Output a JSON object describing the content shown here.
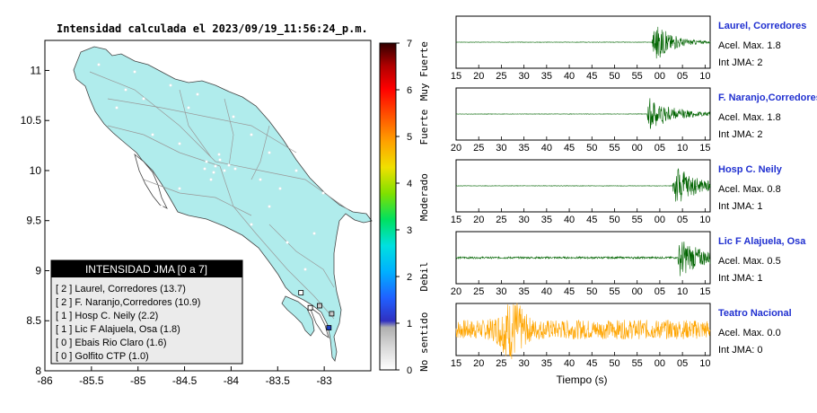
{
  "title": "Intensidad calculada el 2023/09/19_11:56:24_p.m.",
  "chart_data": [
    {
      "type": "map",
      "lon_ticks": [
        -86,
        -85.5,
        -85,
        -84.5,
        -84,
        -83.5,
        -83
      ],
      "lat_ticks": [
        8,
        8.5,
        9,
        9.5,
        10,
        10.5,
        11
      ],
      "xlim": [
        -86,
        -82.5
      ],
      "ylim": [
        8,
        11.3
      ],
      "stations": [
        {
          "lon": -82.95,
          "lat": 8.43,
          "intensity": 2
        },
        {
          "lon": -82.92,
          "lat": 8.57,
          "intensity": 1
        },
        {
          "lon": -83.05,
          "lat": 8.65,
          "intensity": 1
        },
        {
          "lon": -83.25,
          "lat": 8.78,
          "intensity": 0
        },
        {
          "lon": -83.15,
          "lat": 8.63,
          "intensity": 0
        }
      ]
    },
    {
      "type": "colorbar",
      "ticks": [
        "0",
        "1",
        "2",
        "3",
        "4",
        "5",
        "6",
        "7"
      ],
      "range": [
        0,
        7
      ],
      "category_labels": [
        "No sentido",
        "Debil",
        "Moderado",
        "Fuerte",
        "Muy Fuerte"
      ]
    },
    {
      "type": "line",
      "xlabel": "Tiempo (s)",
      "tick_labels_a": [
        "15",
        "20",
        "25",
        "30",
        "35",
        "40",
        "45",
        "50",
        "55",
        "00",
        "05",
        "10"
      ],
      "tick_labels_b": [
        "20",
        "25",
        "30",
        "35",
        "40",
        "45",
        "50",
        "55",
        "00",
        "05",
        "10",
        "15"
      ],
      "series": [
        {
          "name": "Laurel, Corredores",
          "accel_label": "Acel. Max. 1.8",
          "jma_label": "Int JMA: 2",
          "color": "#006400",
          "onset": 0.77,
          "amp": 1.0,
          "decay": 0.3,
          "noise": 0.01,
          "ticks": "a"
        },
        {
          "name": "F. Naranjo,Corredores",
          "accel_label": "Acel. Max. 1.8",
          "jma_label": "Int JMA: 2",
          "color": "#006400",
          "onset": 0.75,
          "amp": 0.75,
          "decay": 0.4,
          "noise": 0.01,
          "ticks": "b"
        },
        {
          "name": "Hosp C. Neily",
          "accel_label": "Acel. Max. 0.8",
          "jma_label": "Int JMA: 1",
          "color": "#006400",
          "onset": 0.85,
          "amp": 1.0,
          "decay": 0.6,
          "noise": 0.01,
          "ticks": "a"
        },
        {
          "name": "Lic F Alajuela, Osa",
          "accel_label": "Acel. Max. 0.5",
          "jma_label": "Int JMA: 1",
          "color": "#006400",
          "onset": 0.87,
          "amp": 0.9,
          "decay": 0.7,
          "noise": 0.04,
          "ticks": "b"
        },
        {
          "name": "Teatro Nacional",
          "accel_label": "Acel. Max. 0.0",
          "jma_label": "Int JMA: 0",
          "color": "#FFA500",
          "onset": 0.22,
          "amp": 0.9,
          "decay": 0.2,
          "noise": 0.25,
          "ticks": "a"
        }
      ]
    }
  ],
  "legend": {
    "title": "INTENSIDAD JMA [0 a 7]",
    "items": [
      "[ 2 ]  Laurel, Corredores (13.7)",
      "[ 2 ]  F. Naranjo,Corredores (10.9)",
      "[ 1 ]  Hosp C. Neily (2.2)",
      "[ 1 ]  Lic F Alajuela, Osa (1.8)",
      "[ 0 ]  Ebais Rio Claro (1.6)",
      "[ 0 ]  Golfito CTP (1.0)"
    ]
  }
}
